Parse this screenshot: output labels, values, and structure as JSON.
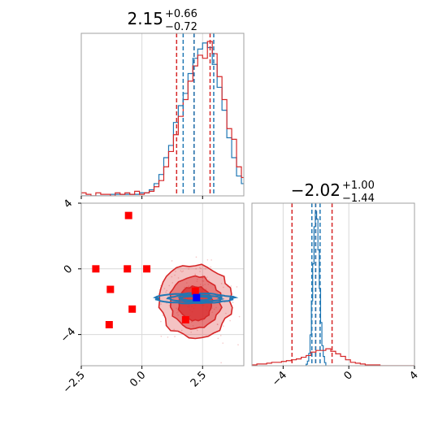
{
  "colors": {
    "red": "#d62728",
    "blue": "#1f77b4",
    "marker_red": "#ff0000",
    "marker_blue": "#0000ff",
    "grid": "#d9d9d9",
    "frame": "#a0a0a0"
  },
  "chart_data": {
    "type": "corner",
    "grid": true,
    "series": [
      {
        "color": "red"
      },
      {
        "color": "blue"
      }
    ],
    "titles": {
      "p1": {
        "median": "2.15",
        "plus": "+0.66",
        "minus": "−0.72"
      },
      "p2": {
        "median": "−2.02",
        "plus": "+1.00",
        "minus": "−1.44"
      }
    },
    "p1_axis": {
      "range": [
        -2.5,
        4.2
      ],
      "ticks": [
        -2.5,
        0.0,
        2.5
      ],
      "tick_labels": [
        "−2.5",
        "0.0",
        "2.5"
      ]
    },
    "p2_axis": {
      "range": [
        -5.9,
        4.0
      ],
      "ticks": [
        -4,
        0,
        4
      ],
      "tick_labels": [
        "−4",
        "0",
        "4"
      ]
    },
    "quantile_lines_p1": {
      "red": [
        1.43,
        2.15,
        2.81
      ],
      "blue": [
        1.7,
        2.15,
        2.96
      ]
    },
    "quantile_lines_p2": {
      "red": [
        -3.46,
        -2.02,
        -1.02
      ],
      "blue": [
        -2.25,
        -2.02,
        -1.75
      ]
    },
    "hist_p1_red": {
      "x0": -2.5,
      "bin_width": 0.2,
      "counts": [
        2,
        1,
        0,
        2,
        1,
        1,
        0,
        2,
        1,
        2,
        1,
        3,
        1,
        2,
        3,
        6,
        10,
        19,
        29,
        40,
        52,
        63,
        75,
        85,
        92,
        90,
        101,
        93,
        78,
        63,
        44,
        37,
        19,
        12,
        6,
        3
      ]
    },
    "hist_p1_blue": {
      "x0": -2.5,
      "bin_width": 0.2,
      "counts": [
        0,
        0,
        0,
        0,
        0,
        0,
        1,
        1,
        1,
        1,
        1,
        1,
        2,
        2,
        4,
        8,
        14,
        25,
        33,
        48,
        59,
        67,
        80,
        90,
        96,
        100,
        97,
        86,
        71,
        56,
        38,
        25,
        13,
        8,
        4,
        2
      ]
    },
    "hist_p2_red": {
      "x0": -5.9,
      "bin_width": 0.3,
      "counts": [
        1,
        2,
        2,
        3,
        4,
        4,
        5,
        6,
        7,
        8,
        10,
        12,
        16,
        18,
        18,
        20,
        17,
        14,
        11,
        7,
        4,
        3,
        2,
        1,
        1,
        1,
        0,
        0,
        0,
        0,
        0,
        0,
        0
      ]
    },
    "hist_p2_blue": {
      "x0": -2.6,
      "bin_width": 0.08,
      "counts": [
        1,
        3,
        8,
        20,
        42,
        66,
        90,
        100,
        95,
        75,
        50,
        28,
        13,
        6,
        2
      ]
    },
    "markers_red": [
      {
        "x": -0.55,
        "y": 3.25
      },
      {
        "x": -1.9,
        "y": 0.0
      },
      {
        "x": -0.6,
        "y": 0.0
      },
      {
        "x": 0.2,
        "y": 0.0
      },
      {
        "x": -1.3,
        "y": -1.25
      },
      {
        "x": -0.4,
        "y": -2.45
      },
      {
        "x": -1.35,
        "y": -3.4
      },
      {
        "x": 1.8,
        "y": -3.1
      },
      {
        "x": 2.2,
        "y": -1.35
      }
    ],
    "marker_blue": {
      "x": 2.25,
      "y": -1.75
    },
    "contours_red": [
      {
        "cx": 2.2,
        "cy": -1.95,
        "rx": 1.5,
        "ry": 2.25,
        "alpha": 0.28
      },
      {
        "cx": 2.2,
        "cy": -2.05,
        "rx": 1.05,
        "ry": 1.6,
        "alpha": 0.45
      },
      {
        "cx": 2.2,
        "cy": -2.1,
        "rx": 0.7,
        "ry": 1.05,
        "alpha": 0.7
      }
    ],
    "contours_blue": [
      {
        "cx": 2.2,
        "cy": -1.8,
        "rx": 1.55,
        "ry": 0.3
      },
      {
        "cx": 2.2,
        "cy": -1.8,
        "rx": 1.1,
        "ry": 0.2
      },
      {
        "cx": 2.2,
        "cy": -1.8,
        "rx": 0.65,
        "ry": 0.12
      }
    ]
  }
}
